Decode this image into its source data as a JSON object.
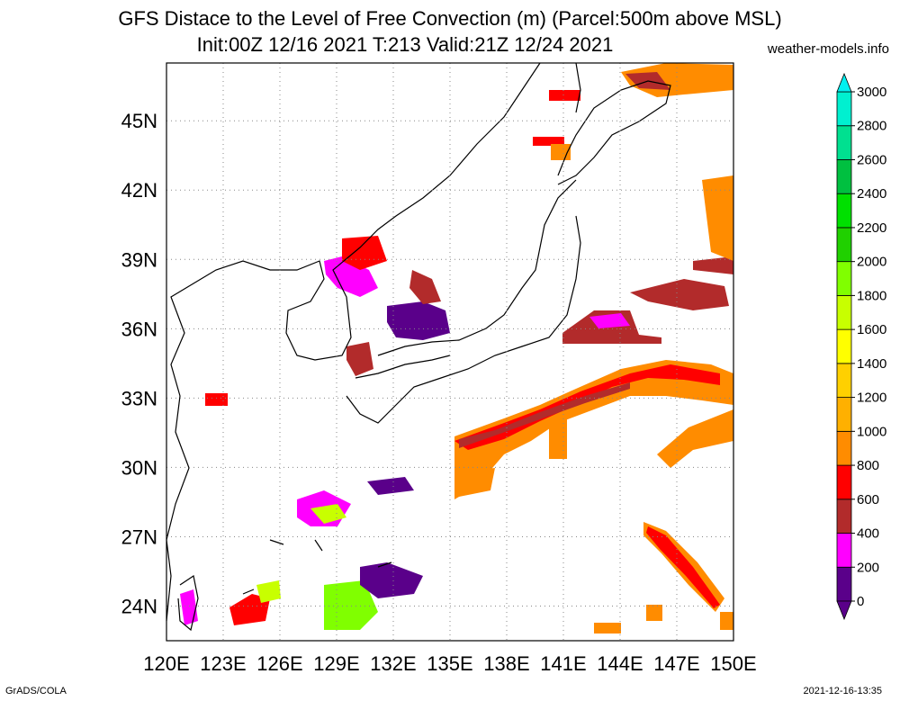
{
  "title_line1": "GFS Distace to the Level of Free Convection (m) (Parcel:500m above MSL)",
  "title_line2": "Init:00Z 12/16 2021 T:213 Valid:21Z 12/24 2021",
  "credit": "weather-models.info",
  "footer_left": "GrADS/COLA",
  "footer_right": "2021-12-16-13:35",
  "map": {
    "lon_range": [
      120,
      150
    ],
    "lat_range": [
      22.5,
      47.5
    ],
    "lon_ticks": [
      "120E",
      "123E",
      "126E",
      "129E",
      "132E",
      "135E",
      "138E",
      "141E",
      "144E",
      "147E",
      "150E"
    ],
    "lat_ticks": [
      "24N",
      "27N",
      "30N",
      "33N",
      "36N",
      "39N",
      "42N",
      "45N"
    ],
    "grid": true
  },
  "colorbar": {
    "levels": [
      "0",
      "200",
      "400",
      "600",
      "800",
      "1000",
      "1200",
      "1400",
      "1600",
      "1800",
      "2000",
      "2200",
      "2400",
      "2600",
      "2800",
      "3000"
    ],
    "colors": [
      "#5a008a",
      "#ff00ff",
      "#b22b2b",
      "#ff0000",
      "#ff8c00",
      "#ffb000",
      "#ffd000",
      "#ffff00",
      "#c8ff00",
      "#80ff00",
      "#20d000",
      "#00e000",
      "#00c040",
      "#00e090",
      "#00f0d0",
      "#00f0f0"
    ]
  }
}
